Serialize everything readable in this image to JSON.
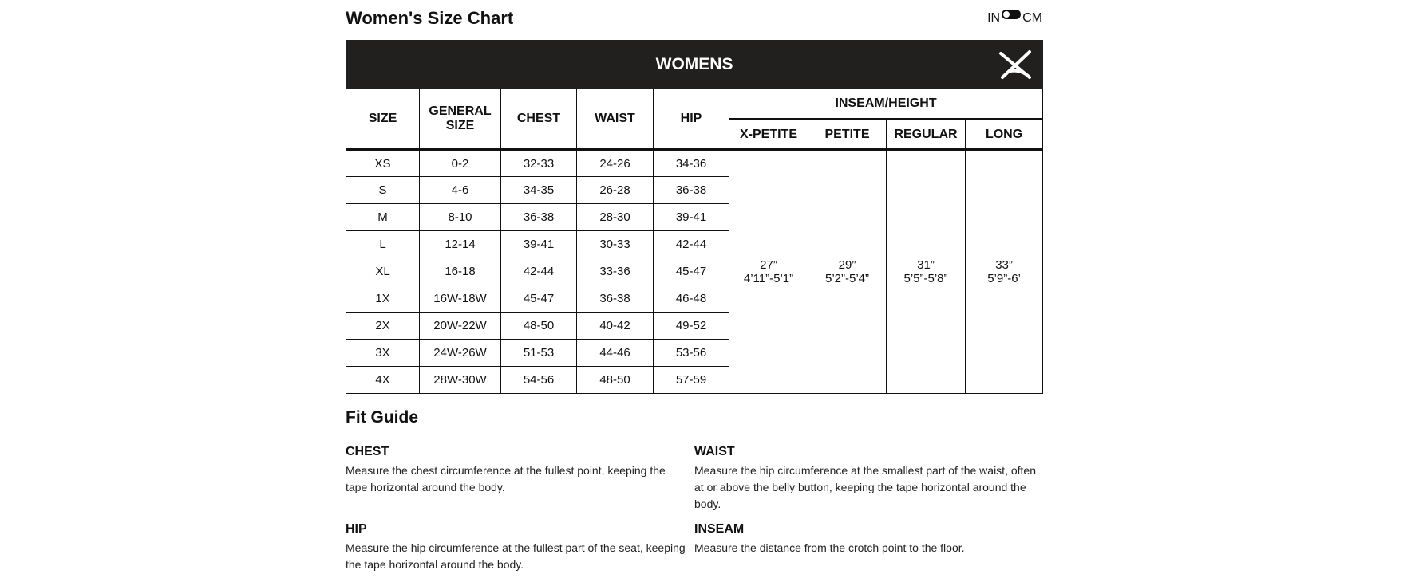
{
  "title": "Women's Size Chart",
  "unit_toggle": {
    "left": "IN",
    "right": "CM"
  },
  "table": {
    "banner": "WOMENS",
    "headers": {
      "size": "SIZE",
      "general": "GENERAL SIZE",
      "chest": "CHEST",
      "waist": "WAIST",
      "hip": "HIP",
      "inseam": "INSEAM/HEIGHT",
      "xpetite": "X-PETITE",
      "petite": "PETITE",
      "regular": "REGULAR",
      "long": "LONG"
    },
    "rows": [
      [
        "XS",
        "0-2",
        "32-33",
        "24-26",
        "34-36"
      ],
      [
        "S",
        "4-6",
        "34-35",
        "26-28",
        "36-38"
      ],
      [
        "M",
        "8-10",
        "36-38",
        "28-30",
        "39-41"
      ],
      [
        "L",
        "12-14",
        "39-41",
        "30-33",
        "42-44"
      ],
      [
        "XL",
        "16-18",
        "42-44",
        "33-36",
        "45-47"
      ],
      [
        "1X",
        "16W-18W",
        "45-47",
        "36-38",
        "46-48"
      ],
      [
        "2X",
        "20W-22W",
        "48-50",
        "40-42",
        "49-52"
      ],
      [
        "3X",
        "24W-26W",
        "51-53",
        "44-46",
        "53-56"
      ],
      [
        "4X",
        "28W-30W",
        "54-56",
        "48-50",
        "57-59"
      ]
    ],
    "inseam": [
      {
        "inseam": "27”",
        "height": "4’11”-5’1”"
      },
      {
        "inseam": "29”",
        "height": "5’2”-5’4”"
      },
      {
        "inseam": "31”",
        "height": "5’5”-5’8”"
      },
      {
        "inseam": "33”",
        "height": "5’9”-6’"
      }
    ]
  },
  "fit_guide": {
    "title": "Fit Guide",
    "items": [
      {
        "label": "CHEST",
        "text": "Measure the chest circumference at the fullest point, keeping the tape horizontal around the body."
      },
      {
        "label": "WAIST",
        "text": "Measure the hip circumference at the smallest part of the waist, often at or above the belly button, keeping the tape horizontal around the body."
      },
      {
        "label": "HIP",
        "text": "Measure the hip circumference at the fullest part of the seat, keeping the tape horizontal around the body."
      },
      {
        "label": "INSEAM",
        "text": "Measure the distance from the crotch point to the floor."
      }
    ]
  }
}
